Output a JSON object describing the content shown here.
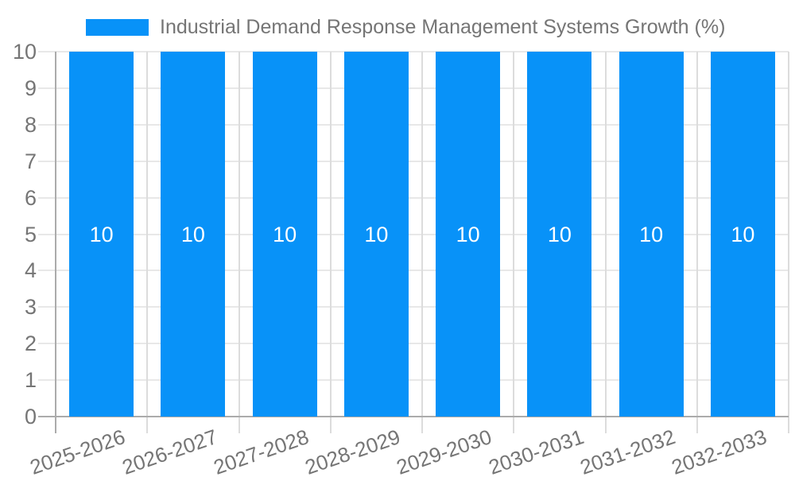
{
  "chart_data": {
    "type": "bar",
    "title": "Industrial Demand Response Management Systems Growth (%)",
    "categories": [
      "2025-2026",
      "2026-2027",
      "2027-2028",
      "2028-2029",
      "2029-2030",
      "2030-2031",
      "2031-2032",
      "2032-2033"
    ],
    "series": [
      {
        "name": "Industrial Demand Response Management Systems Growth (%)",
        "values": [
          10,
          10,
          10,
          10,
          10,
          10,
          10,
          10
        ],
        "color": "#0892F8"
      }
    ],
    "bar_value_labels": [
      "10",
      "10",
      "10",
      "10",
      "10",
      "10",
      "10",
      "10"
    ],
    "xlabel": "",
    "ylabel": "",
    "ylim": [
      0,
      10
    ],
    "yticks": [
      0,
      1,
      2,
      3,
      4,
      5,
      6,
      7,
      8,
      9,
      10
    ],
    "grid": true,
    "legend_position": "top"
  },
  "colors": {
    "bar": "#0892F8",
    "bar_label": "#ffffff",
    "grid_horizontal": "#e8e8e8",
    "grid_vertical": "#dcdcdc",
    "axis": "#ababab",
    "text": "#757575",
    "background": "#ffffff"
  }
}
